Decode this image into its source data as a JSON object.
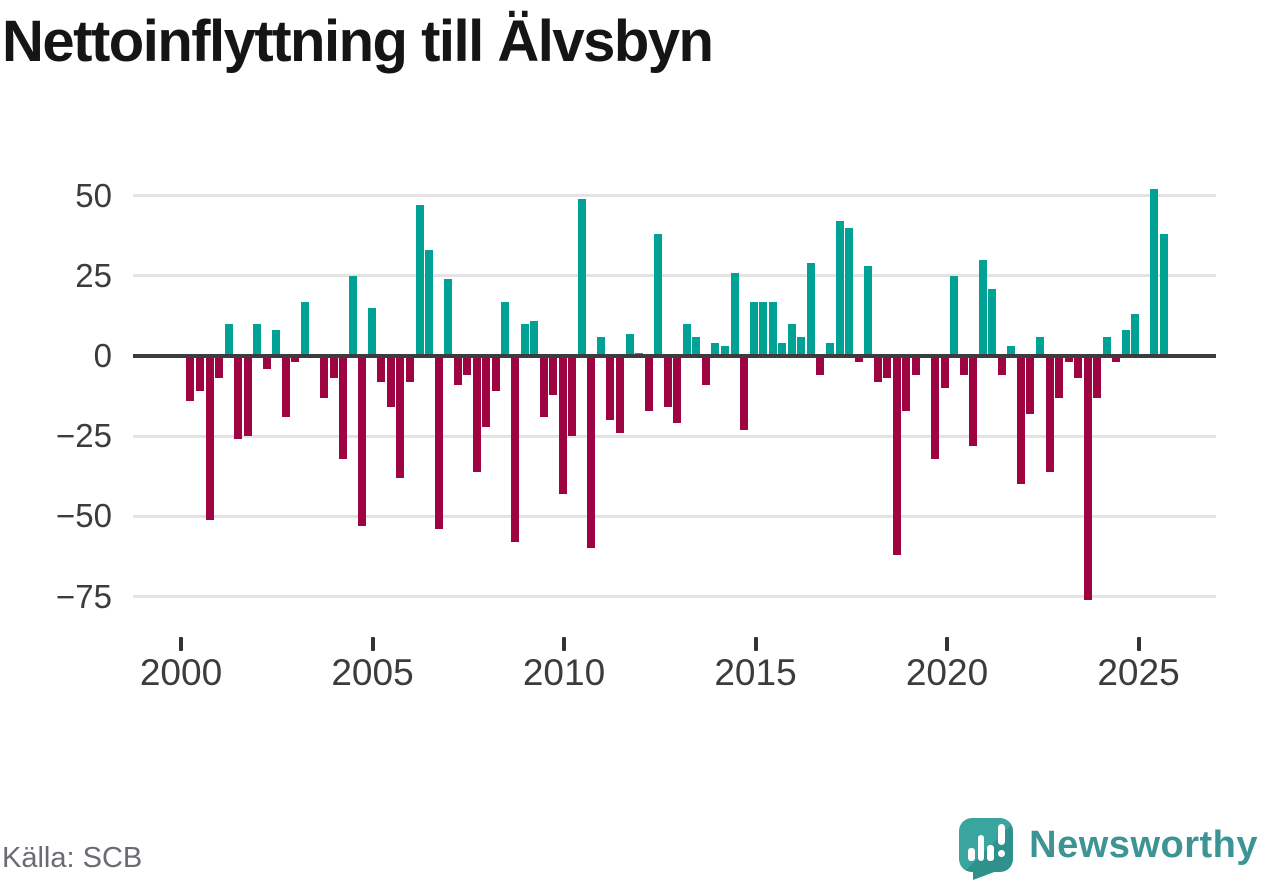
{
  "header": {
    "title": "Nettoinflyttning till Älvsbyn"
  },
  "footer": {
    "source_label": "Källa: SCB",
    "brand_name": "Newsworthy",
    "brand_icon": "newsworthy-bar-chart-speech-bubble"
  },
  "colors": {
    "positive_bar": "#00a296",
    "negative_bar": "#9e0342",
    "zero_line": "#3c3c3c",
    "gridline": "#e3e3e3",
    "axis_text": "#3c3c3c",
    "source_text": "#6b6b74",
    "brand_teal": "#3c9495",
    "background": "#ffffff"
  },
  "chart_data": {
    "type": "bar",
    "title": "Nettoinflyttning till Älvsbyn",
    "xlabel": "",
    "ylabel": "",
    "frequency": "quarterly",
    "x_start": "2000 Q1",
    "x_end": "2025 Q3",
    "ylim": [
      -80,
      55
    ],
    "grid": "horizontal",
    "legend": "none",
    "y_ticks": [
      50,
      25,
      0,
      -25,
      -50,
      -75
    ],
    "x_tick_years": [
      2000,
      2005,
      2010,
      2015,
      2020,
      2025
    ],
    "series": [
      {
        "name": "Nettoinflyttning",
        "start_year": 2000,
        "start_quarter": 1,
        "values": [
          -14,
          -11,
          -51,
          -7,
          10,
          -26,
          -25,
          10,
          -4,
          8,
          -19,
          -2,
          17,
          0,
          -13,
          -7,
          -32,
          25,
          -53,
          15,
          -8,
          -16,
          -38,
          -8,
          47,
          33,
          -54,
          24,
          -9,
          -6,
          -36,
          -22,
          -11,
          17,
          -58,
          10,
          11,
          -19,
          -12,
          -43,
          -25,
          49,
          -60,
          6,
          -20,
          -24,
          7,
          1,
          -17,
          38,
          -16,
          -21,
          10,
          6,
          -9,
          4,
          3,
          26,
          -23,
          17,
          17,
          17,
          4,
          10,
          6,
          29,
          -6,
          4,
          42,
          40,
          -2,
          28,
          -8,
          -7,
          -62,
          -17,
          -6,
          0,
          -32,
          -10,
          25,
          -6,
          -28,
          30,
          21,
          -6,
          3,
          -40,
          -18,
          6,
          -36,
          -13,
          -2,
          -7,
          -76,
          -13,
          6,
          -2,
          8,
          13,
          0,
          52,
          38
        ]
      }
    ]
  }
}
